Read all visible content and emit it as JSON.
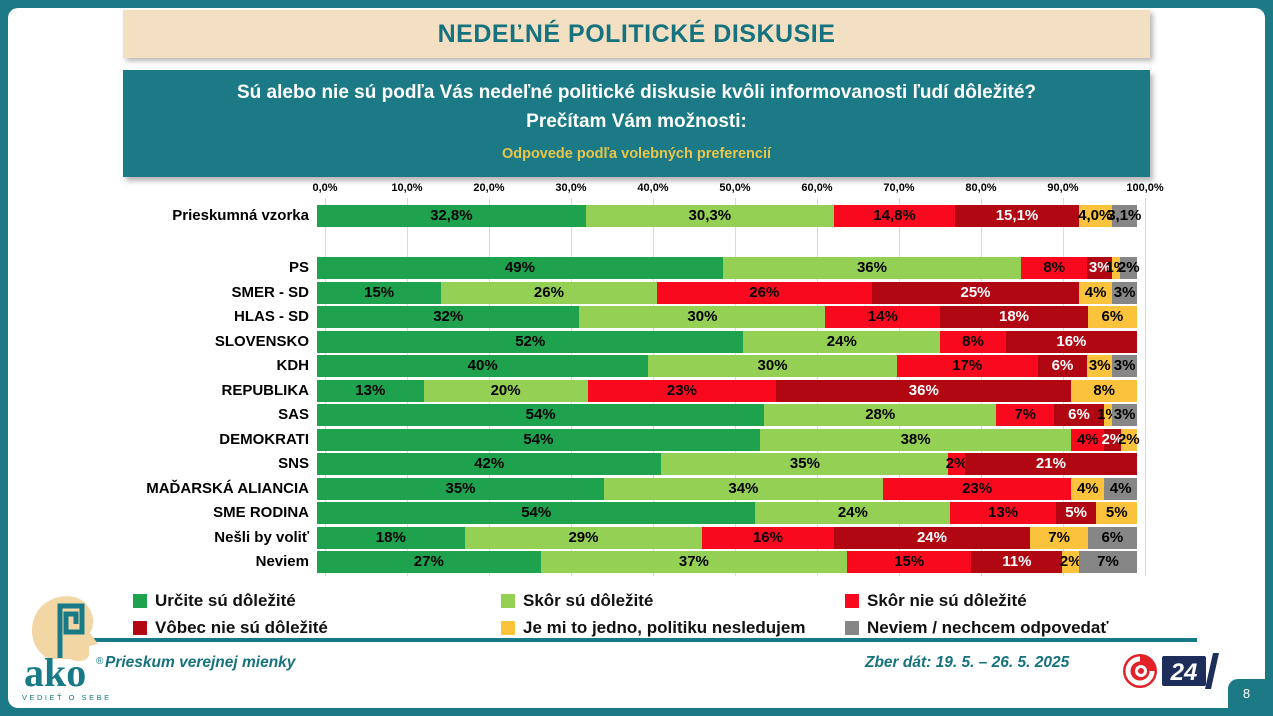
{
  "header": {
    "title": "NEDEĽNÉ POLITICKÉ DISKUSIE"
  },
  "question": {
    "line1": "Sú alebo nie sú podľa Vás nedeľné politické diskusie kvôli informovanosti ľudí dôležité?",
    "line2": "Prečítam Vám možnosti:",
    "subtitle": "Odpovede podľa volebných preferencií"
  },
  "chart_data": {
    "type": "bar",
    "stacked": true,
    "orientation": "horizontal",
    "unit": "%",
    "x_axis": {
      "range": [
        0,
        100
      ],
      "tick_labels": [
        "0,0%",
        "10,0%",
        "20,0%",
        "30,0%",
        "40,0%",
        "50,0%",
        "60,0%",
        "70,0%",
        "80,0%",
        "90,0%",
        "100,0%"
      ]
    },
    "series": [
      {
        "name": "Určite sú dôležité",
        "color": "#1FA24E",
        "label_color": "#000000"
      },
      {
        "name": "Skôr sú dôležité",
        "color": "#93D054",
        "label_color": "#000000"
      },
      {
        "name": "Skôr nie sú dôležité",
        "color": "#F9091E",
        "label_color": "#000000"
      },
      {
        "name": "Vôbec nie sú dôležité",
        "color": "#B10713",
        "label_color": "#FFFFFF"
      },
      {
        "name": "Je mi to jedno, politiku nesledujem",
        "color": "#FBC23C",
        "label_color": "#000000"
      },
      {
        "name": "Neviem / nechcem odpovedať",
        "color": "#868686",
        "label_color": "#000000"
      }
    ],
    "rows": [
      {
        "label": "Prieskumná vzorka",
        "values": [
          32.8,
          30.3,
          14.8,
          15.1,
          4.0,
          3.1
        ],
        "labels": [
          "32,8%",
          "30,3%",
          "14,8%",
          "15,1%",
          "4,0%",
          "3,1%"
        ]
      },
      {
        "label": "PS",
        "values": [
          49,
          36,
          8,
          3,
          1,
          2
        ],
        "labels": [
          "49%",
          "36%",
          "8%",
          "3%",
          "1%",
          "2%"
        ]
      },
      {
        "label": "SMER - SD",
        "values": [
          15,
          26,
          26,
          25,
          4,
          3
        ],
        "labels": [
          "15%",
          "26%",
          "26%",
          "25%",
          "4%",
          "3%"
        ]
      },
      {
        "label": "HLAS - SD",
        "values": [
          32,
          30,
          14,
          18,
          6,
          0
        ],
        "labels": [
          "32%",
          "30%",
          "14%",
          "18%",
          "6%",
          ""
        ]
      },
      {
        "label": "SLOVENSKO",
        "values": [
          52,
          24,
          8,
          16,
          0,
          0
        ],
        "labels": [
          "52%",
          "24%",
          "8%",
          "16%",
          "",
          ""
        ]
      },
      {
        "label": "KDH",
        "values": [
          40,
          30,
          17,
          6,
          3,
          3
        ],
        "labels": [
          "40%",
          "30%",
          "17%",
          "6%",
          "3%",
          "3%"
        ]
      },
      {
        "label": "REPUBLIKA",
        "values": [
          13,
          20,
          23,
          36,
          8,
          0
        ],
        "labels": [
          "13%",
          "20%",
          "23%",
          "36%",
          "8%",
          ""
        ]
      },
      {
        "label": "SAS",
        "values": [
          54,
          28,
          7,
          6,
          1,
          3
        ],
        "labels": [
          "54%",
          "28%",
          "7%",
          "6%",
          "1%",
          "3%"
        ]
      },
      {
        "label": "DEMOKRATI",
        "values": [
          54,
          38,
          4,
          2,
          2,
          0
        ],
        "labels": [
          "54%",
          "38%",
          "4%",
          "2%",
          "2%",
          ""
        ]
      },
      {
        "label": "SNS",
        "values": [
          42,
          35,
          2,
          21,
          0,
          0
        ],
        "labels": [
          "42%",
          "35%",
          "2%",
          "21%",
          "",
          ""
        ]
      },
      {
        "label": "MAĎARSKÁ ALIANCIA",
        "values": [
          35,
          34,
          23,
          0,
          4,
          4
        ],
        "labels": [
          "35%",
          "34%",
          "23%",
          "",
          "4%",
          "4%"
        ]
      },
      {
        "label": "SME RODINA",
        "values": [
          54,
          24,
          13,
          5,
          5,
          0
        ],
        "labels": [
          "54%",
          "24%",
          "13%",
          "5%",
          "5%",
          ""
        ]
      },
      {
        "label": "Nešli by voliť",
        "values": [
          18,
          29,
          16,
          24,
          7,
          6
        ],
        "labels": [
          "18%",
          "29%",
          "16%",
          "24%",
          "7%",
          "6%"
        ]
      },
      {
        "label": "Neviem",
        "values": [
          27,
          37,
          15,
          11,
          2,
          7
        ],
        "labels": [
          "27%",
          "37%",
          "15%",
          "11%",
          "2%",
          "7%"
        ]
      }
    ]
  },
  "legend": {
    "items": [
      {
        "label": "Určite sú dôležité",
        "color": "#1FA24E"
      },
      {
        "label": "Skôr sú dôležité",
        "color": "#93D054"
      },
      {
        "label": "Skôr nie sú dôležité",
        "color": "#F9091E"
      },
      {
        "label": "Vôbec nie sú dôležité",
        "color": "#B10713"
      },
      {
        "label": "Je mi to jedno, politiku nesledujem",
        "color": "#FBC23C"
      },
      {
        "label": "Neviem / nechcem odpovedať",
        "color": "#868686"
      }
    ]
  },
  "footer": {
    "left_text": "Prieskum verejnej mienky",
    "right_text": "Zber dát: 19. 5. – 26. 5. 2025",
    "ako_logo": {
      "wordmark": "ako",
      "registered": "®",
      "tagline": "VEDIEŤ O SEBE"
    },
    "joj24_logo": {
      "text": "24"
    },
    "page_number": "8"
  },
  "colors": {
    "frame_teal": "#1B7A85",
    "title_cream": "#F3E0C3",
    "title_text": "#15727E",
    "subtitle_yellow": "#E7C64B",
    "grid_line": "#DADADA",
    "joj_navy": "#1D2E5B",
    "joj_red": "#E22128",
    "ako_skin": "#F2D7A5"
  }
}
